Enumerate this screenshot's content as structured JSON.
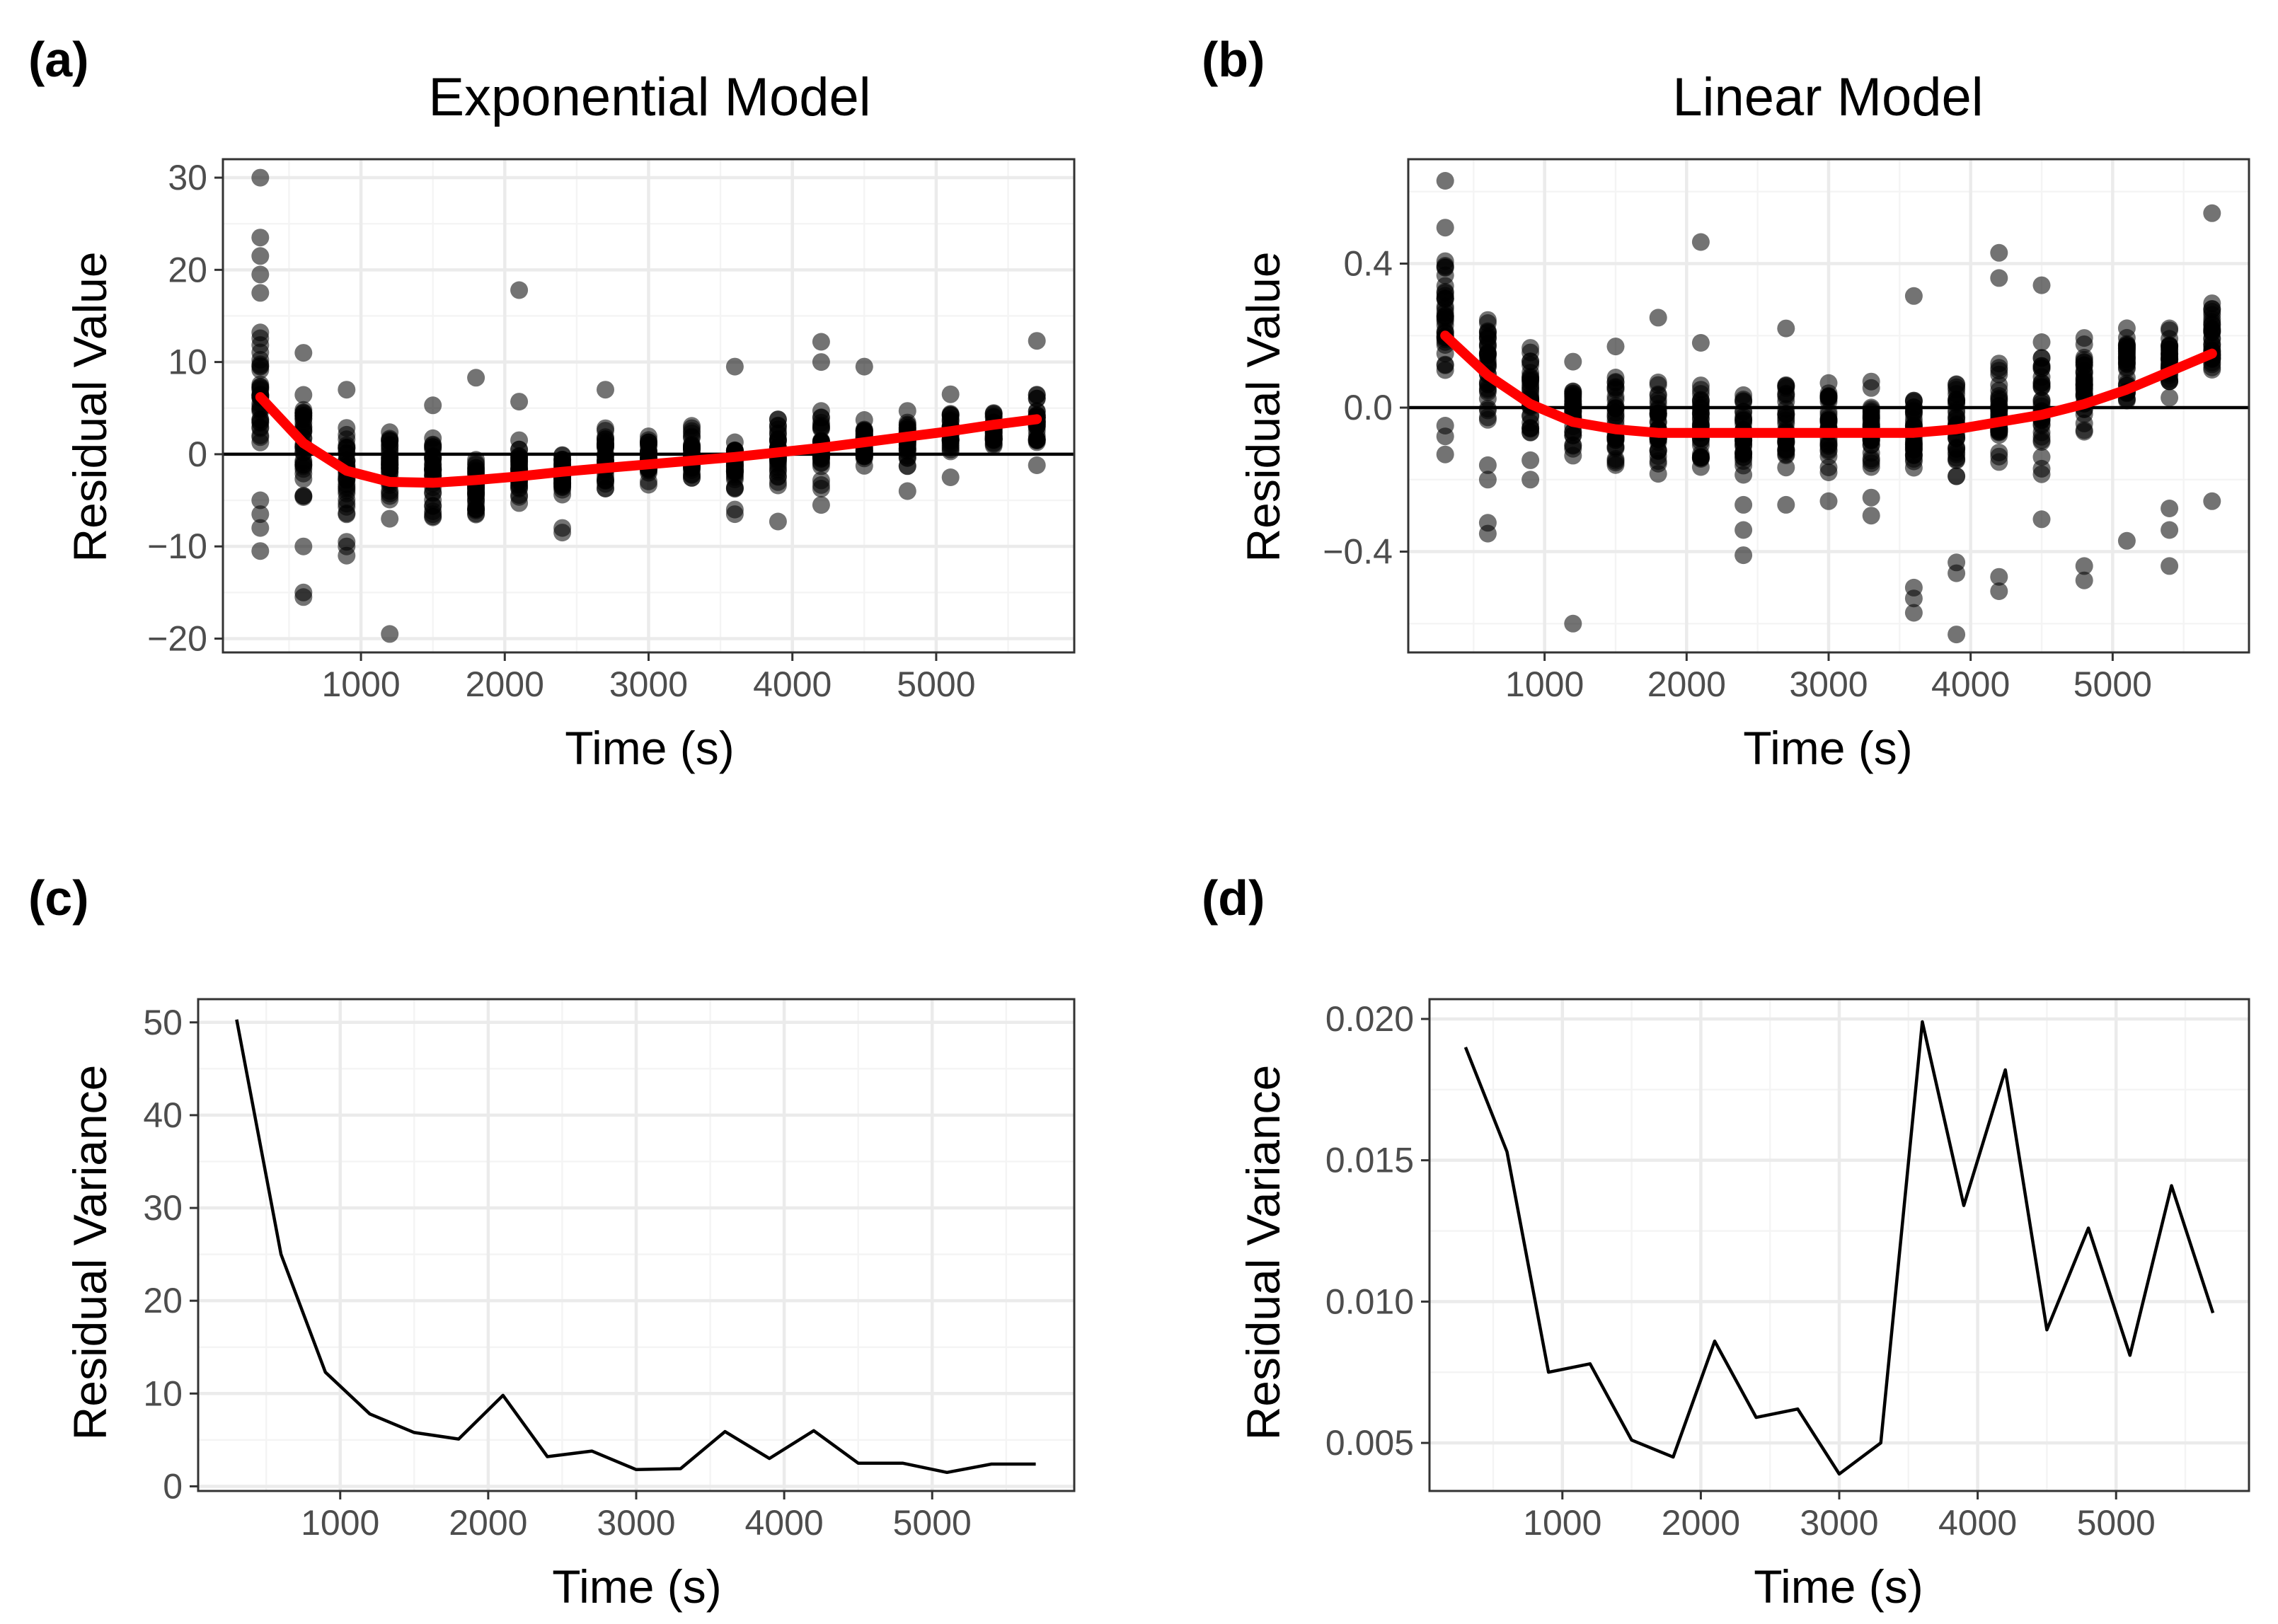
{
  "chart_data": [
    {
      "panel_label": "(a)",
      "type": "scatter",
      "title": "Exponential Model",
      "xlabel": "Time (s)",
      "ylabel": "Residual Value",
      "xlim": [
        40,
        5960
      ],
      "ylim": [
        -21.5,
        32
      ],
      "xticks": [
        1000,
        2000,
        3000,
        4000,
        5000
      ],
      "xtick_labels": [
        "1000",
        "2000",
        "3000",
        "4000",
        "5000"
      ],
      "yticks": [
        -20,
        -10,
        0,
        10,
        20,
        30
      ],
      "ytick_labels": [
        "−20",
        "−10",
        "0",
        "10",
        "20",
        "30"
      ],
      "hline": 0,
      "x": [
        300,
        600,
        900,
        1200,
        1500,
        1800,
        2100,
        2400,
        2700,
        3000,
        3300,
        3600,
        3900,
        4200,
        4500,
        4800,
        5100,
        5400,
        5700
      ],
      "point_ranges": [
        [
          -2,
          15
        ],
        [
          -7,
          8
        ],
        [
          -8,
          5
        ],
        [
          -6,
          3
        ],
        [
          -8,
          3
        ],
        [
          -7,
          0.5
        ],
        [
          -6,
          2
        ],
        [
          -5,
          1
        ],
        [
          -5,
          3
        ],
        [
          -4,
          2.5
        ],
        [
          -3.5,
          4
        ],
        [
          -4,
          2.5
        ],
        [
          -4,
          5
        ],
        [
          -4,
          5
        ],
        [
          -2,
          4.5
        ],
        [
          -2,
          5
        ],
        [
          0,
          5
        ],
        [
          0,
          5
        ],
        [
          1,
          7
        ]
      ],
      "outliers": [
        [
          300,
          30
        ],
        [
          300,
          23.5
        ],
        [
          300,
          21.5
        ],
        [
          300,
          19.5
        ],
        [
          300,
          17.5
        ],
        [
          300,
          -5
        ],
        [
          300,
          -6.5
        ],
        [
          300,
          -8
        ],
        [
          300,
          -10.5
        ],
        [
          600,
          11
        ],
        [
          600,
          -10
        ],
        [
          600,
          -15
        ],
        [
          600,
          -15.5
        ],
        [
          900,
          7
        ],
        [
          900,
          -9.5
        ],
        [
          900,
          -10
        ],
        [
          900,
          -11
        ],
        [
          1200,
          -7
        ],
        [
          1200,
          -19.5
        ],
        [
          1500,
          5.3
        ],
        [
          1800,
          8.3
        ],
        [
          2100,
          17.8
        ],
        [
          2100,
          5.7
        ],
        [
          2400,
          -8
        ],
        [
          2400,
          -8.5
        ],
        [
          2700,
          7
        ],
        [
          3600,
          9.5
        ],
        [
          3600,
          -6
        ],
        [
          3600,
          -6.5
        ],
        [
          3900,
          -7.3
        ],
        [
          4200,
          12.2
        ],
        [
          4200,
          10
        ],
        [
          4200,
          -5.5
        ],
        [
          4500,
          9.5
        ],
        [
          4800,
          -4
        ],
        [
          5100,
          6.5
        ],
        [
          5100,
          -2.5
        ],
        [
          5700,
          12.3
        ],
        [
          5700,
          -1.2
        ]
      ],
      "smooth_x": [
        300,
        600,
        900,
        1200,
        1500,
        1800,
        2100,
        2400,
        2700,
        3000,
        3300,
        3600,
        3900,
        4200,
        4500,
        4800,
        5100,
        5400,
        5700
      ],
      "smooth_y": [
        6.2,
        1.2,
        -1.8,
        -3.0,
        -3.1,
        -2.8,
        -2.4,
        -1.9,
        -1.5,
        -1.1,
        -0.7,
        -0.3,
        0.2,
        0.7,
        1.3,
        1.9,
        2.5,
        3.2,
        3.8
      ]
    },
    {
      "panel_label": "(b)",
      "type": "scatter",
      "title": "Linear Model",
      "xlabel": "Time (s)",
      "ylabel": "Residual Value",
      "xlim": [
        40,
        5960
      ],
      "ylim": [
        -0.68,
        0.69
      ],
      "xticks": [
        1000,
        2000,
        3000,
        4000,
        5000
      ],
      "xtick_labels": [
        "1000",
        "2000",
        "3000",
        "4000",
        "5000"
      ],
      "yticks": [
        -0.4,
        0,
        0.4
      ],
      "ytick_labels": [
        "−0.4",
        "0.0",
        "0.4"
      ],
      "hline": 0,
      "x": [
        300,
        600,
        900,
        1200,
        1500,
        1800,
        2100,
        2400,
        2700,
        3000,
        3300,
        3600,
        3900,
        4200,
        4500,
        4800,
        5100,
        5400,
        5700
      ],
      "point_ranges": [
        [
          0.05,
          0.45
        ],
        [
          -0.1,
          0.3
        ],
        [
          -0.15,
          0.2
        ],
        [
          -0.15,
          0.15
        ],
        [
          -0.2,
          0.1
        ],
        [
          -0.2,
          0.1
        ],
        [
          -0.2,
          0.1
        ],
        [
          -0.2,
          0.05
        ],
        [
          -0.2,
          0.1
        ],
        [
          -0.2,
          0.1
        ],
        [
          -0.2,
          0.1
        ],
        [
          -0.2,
          0.05
        ],
        [
          -0.2,
          0.1
        ],
        [
          -0.2,
          0.15
        ],
        [
          -0.2,
          0.2
        ],
        [
          -0.1,
          0.2
        ],
        [
          -0.05,
          0.25
        ],
        [
          0,
          0.25
        ],
        [
          0.05,
          0.3
        ]
      ],
      "outliers": [
        [
          300,
          0.63
        ],
        [
          300,
          0.5
        ],
        [
          300,
          -0.05
        ],
        [
          300,
          -0.08
        ],
        [
          300,
          -0.13
        ],
        [
          600,
          -0.16
        ],
        [
          600,
          -0.2
        ],
        [
          600,
          -0.32
        ],
        [
          600,
          -0.35
        ],
        [
          900,
          -0.2
        ],
        [
          1200,
          -0.6
        ],
        [
          1500,
          0.17
        ],
        [
          1800,
          0.25
        ],
        [
          2100,
          0.46
        ],
        [
          2100,
          0.18
        ],
        [
          2400,
          -0.27
        ],
        [
          2400,
          -0.34
        ],
        [
          2400,
          -0.41
        ],
        [
          2700,
          0.22
        ],
        [
          2700,
          -0.27
        ],
        [
          3000,
          -0.26
        ],
        [
          3300,
          -0.25
        ],
        [
          3300,
          -0.3
        ],
        [
          3600,
          0.31
        ],
        [
          3600,
          -0.5
        ],
        [
          3600,
          -0.53
        ],
        [
          3600,
          -0.57
        ],
        [
          3900,
          -0.43
        ],
        [
          3900,
          -0.46
        ],
        [
          3900,
          -0.63
        ],
        [
          4200,
          0.43
        ],
        [
          4200,
          0.36
        ],
        [
          4200,
          -0.47
        ],
        [
          4200,
          -0.51
        ],
        [
          4500,
          0.34
        ],
        [
          4500,
          -0.31
        ],
        [
          4800,
          -0.44
        ],
        [
          4800,
          -0.48
        ],
        [
          5100,
          -0.37
        ],
        [
          5400,
          -0.28
        ],
        [
          5400,
          -0.34
        ],
        [
          5400,
          -0.44
        ],
        [
          5700,
          0.54
        ],
        [
          5700,
          -0.26
        ]
      ],
      "smooth_x": [
        300,
        600,
        900,
        1200,
        1500,
        1800,
        2100,
        2400,
        2700,
        3000,
        3300,
        3600,
        3900,
        4200,
        4500,
        4800,
        5100,
        5400,
        5700
      ],
      "smooth_y": [
        0.2,
        0.09,
        0.01,
        -0.04,
        -0.06,
        -0.07,
        -0.07,
        -0.07,
        -0.07,
        -0.07,
        -0.07,
        -0.07,
        -0.06,
        -0.04,
        -0.02,
        0.01,
        0.05,
        0.1,
        0.15
      ]
    },
    {
      "panel_label": "(c)",
      "type": "line",
      "title": "",
      "xlabel": "Time (s)",
      "ylabel": "Residual Variance",
      "xlim": [
        40,
        5960
      ],
      "ylim": [
        -0.5,
        52.5
      ],
      "xticks": [
        1000,
        2000,
        3000,
        4000,
        5000
      ],
      "xtick_labels": [
        "1000",
        "2000",
        "3000",
        "4000",
        "5000"
      ],
      "yticks": [
        0,
        10,
        20,
        30,
        40,
        50
      ],
      "ytick_labels": [
        "0",
        "10",
        "20",
        "30",
        "40",
        "50"
      ],
      "x": [
        300,
        600,
        900,
        1200,
        1500,
        1800,
        2100,
        2400,
        2700,
        3000,
        3300,
        3600,
        3900,
        4200,
        4500,
        4800,
        5100,
        5400,
        5700
      ],
      "y": [
        50.3,
        25.0,
        12.3,
        7.8,
        5.8,
        5.1,
        9.8,
        3.2,
        3.8,
        1.8,
        1.9,
        5.9,
        3.0,
        6.0,
        2.5,
        2.5,
        1.5,
        2.4,
        2.4
      ]
    },
    {
      "panel_label": "(d)",
      "type": "line",
      "title": "",
      "xlabel": "Time (s)",
      "ylabel": "Residual Variance",
      "xlim": [
        40,
        5960
      ],
      "ylim": [
        0.0033,
        0.0207
      ],
      "xticks": [
        1000,
        2000,
        3000,
        4000,
        5000
      ],
      "xtick_labels": [
        "1000",
        "2000",
        "3000",
        "4000",
        "5000"
      ],
      "yticks": [
        0.005,
        0.01,
        0.015,
        0.02
      ],
      "ytick_labels": [
        "0.005",
        "0.010",
        "0.015",
        "0.020"
      ],
      "x": [
        300,
        600,
        900,
        1200,
        1500,
        1800,
        2100,
        2400,
        2700,
        3000,
        3300,
        3600,
        3900,
        4200,
        4500,
        4800,
        5100,
        5400,
        5700
      ],
      "y": [
        0.019,
        0.0153,
        0.0075,
        0.0078,
        0.0051,
        0.0045,
        0.0086,
        0.0059,
        0.0062,
        0.0039,
        0.005,
        0.0199,
        0.0134,
        0.0182,
        0.009,
        0.0126,
        0.0081,
        0.0141,
        0.0096
      ]
    }
  ]
}
